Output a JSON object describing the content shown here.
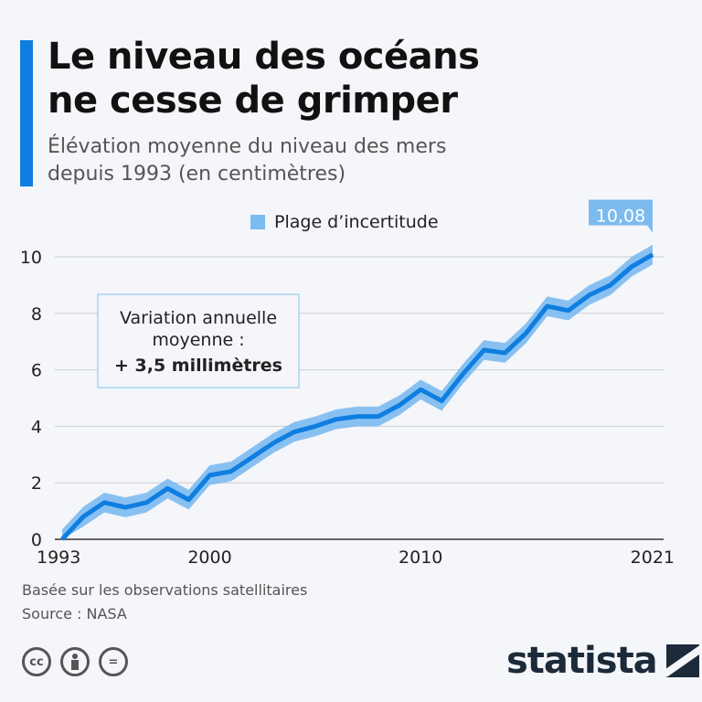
{
  "title": "Le niveau des océans ne cesse de grimper",
  "title_line1": "Le niveau des océans",
  "title_line2": "ne cesse de grimper",
  "subtitle_line1": "Élévation moyenne du niveau des mers",
  "subtitle_line2": "depuis 1993 (en centimètres)",
  "annotation": {
    "line1": "Variation annuelle",
    "line2": "moyenne :",
    "line3": "+ 3,5 millimètres"
  },
  "footer": {
    "note": "Basée sur les observations satellitaires",
    "source": "Source : NASA"
  },
  "license_icons": [
    "cc-icon",
    "attribution-icon",
    "no-derivatives-icon"
  ],
  "brand": "statista",
  "colors": {
    "accent": "#0f7ee0",
    "band": "#7cbbf0",
    "label_bg": "#7cbbf0"
  },
  "chart_data": {
    "type": "line",
    "title": "",
    "xlabel": "",
    "ylabel": "",
    "ylim": [
      0,
      10
    ],
    "xlim": [
      1993,
      2021
    ],
    "yticks": [
      "0",
      "2",
      "4",
      "6",
      "8",
      "10"
    ],
    "xticks": [
      {
        "value": 1993,
        "label": "1993"
      },
      {
        "value": 2000,
        "label": "2000"
      },
      {
        "value": 2010,
        "label": "2010"
      },
      {
        "value": 2021,
        "label": "2021"
      }
    ],
    "grid": true,
    "legend": {
      "position": "top",
      "entries": [
        "Plage d’incertitude"
      ]
    },
    "end_label": "10,08",
    "x": [
      1993,
      1994,
      1995,
      1996,
      1997,
      1998,
      1999,
      2000,
      2001,
      2002,
      2003,
      2004,
      2005,
      2006,
      2007,
      2008,
      2009,
      2010,
      2011,
      2012,
      2013,
      2014,
      2015,
      2016,
      2017,
      2018,
      2019,
      2020,
      2021
    ],
    "series": [
      {
        "values": [
          0,
          0.8,
          1.3,
          1.13,
          1.3,
          1.8,
          1.4,
          2.27,
          2.4,
          2.9,
          3.4,
          3.8,
          4.0,
          4.25,
          4.35,
          4.35,
          4.75,
          5.3,
          4.9,
          5.85,
          6.7,
          6.6,
          7.3,
          8.25,
          8.1,
          8.65,
          9.0,
          9.65,
          10.08
        ]
      }
    ],
    "uncertainty": 0.35
  }
}
